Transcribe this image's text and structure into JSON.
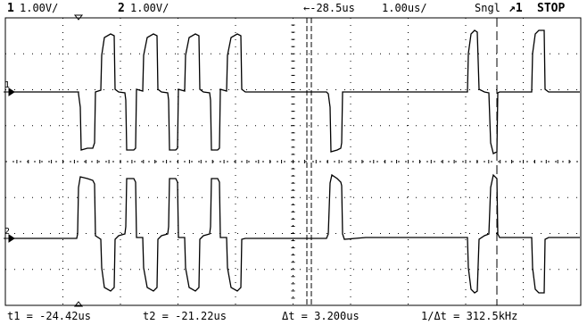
{
  "header": {
    "ch1_number": "1",
    "ch1_scale": "1.00V/",
    "ch2_number": "2",
    "ch2_scale": "1.00V/",
    "timebase_delay": "←-28.5us",
    "timebase_scale": "1.00us/",
    "acq_mode": "Sngl",
    "trigger_label": "↗1",
    "run_state": "STOP"
  },
  "markers": {
    "ch1_ground": "1",
    "ch2_ground": "2"
  },
  "measurements": {
    "t1": "t1 = -24.42us",
    "t2": "t2 = -21.22us",
    "dt": "Δt = 3.200us",
    "inv_dt": "1/Δt = 312.5kHz"
  },
  "colors": {
    "background": "#ffffff",
    "trace": "#000000",
    "grid": "#000000"
  }
}
